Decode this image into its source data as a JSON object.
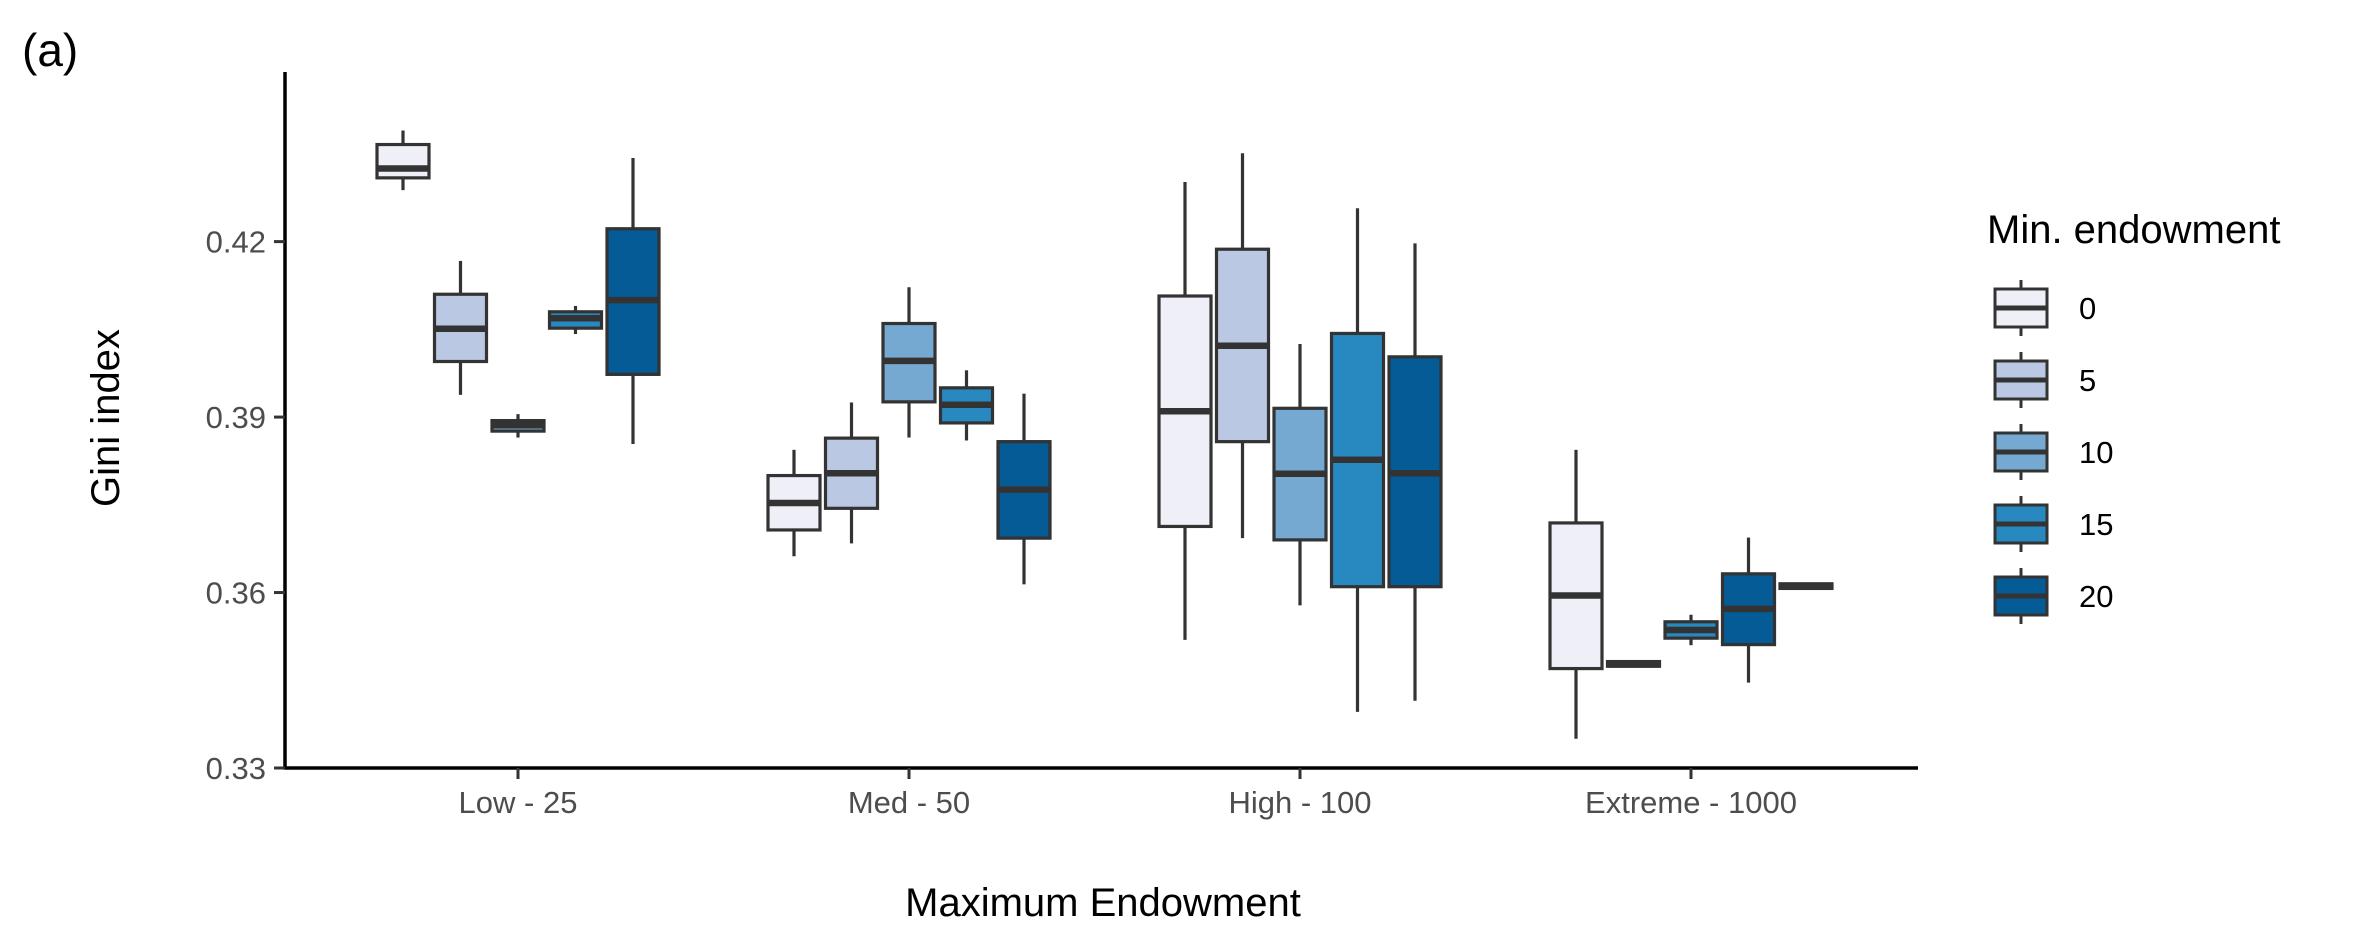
{
  "panel_tag": "(a)",
  "colors": {
    "series": [
      "#eff0f7",
      "#bac8e3",
      "#75a9d2",
      "#2888c0",
      "#045b95"
    ],
    "stroke": "#333333",
    "axis": "#000000"
  },
  "chart_data": {
    "type": "box",
    "xlabel": "Maximum Endowment",
    "ylabel": "Gini index",
    "ylim": [
      0.33,
      0.449
    ],
    "yticks": [
      0.33,
      0.36,
      0.39,
      0.42
    ],
    "ytick_labels": [
      "0.33",
      "0.36",
      "0.39",
      "0.42"
    ],
    "categories": [
      "Low - 25",
      "Med - 50",
      "High - 100",
      "Extreme - 1000"
    ],
    "legend_title": "Min. endowment",
    "legend_position": "right",
    "grid": false,
    "series": [
      {
        "name": "0",
        "boxes": [
          {
            "min": 0.4288,
            "q1": 0.4309,
            "median": 0.4325,
            "q3": 0.4366,
            "max": 0.439
          },
          {
            "min": 0.3662,
            "q1": 0.3707,
            "median": 0.3753,
            "q3": 0.38,
            "max": 0.3844
          },
          {
            "min": 0.3519,
            "q1": 0.3713,
            "median": 0.391,
            "q3": 0.4107,
            "max": 0.4302
          },
          {
            "min": 0.335,
            "q1": 0.347,
            "median": 0.3595,
            "q3": 0.3719,
            "max": 0.3844
          }
        ]
      },
      {
        "name": "5",
        "boxes": [
          {
            "min": 0.3938,
            "q1": 0.3995,
            "median": 0.4051,
            "q3": 0.411,
            "max": 0.4167
          },
          {
            "min": 0.3684,
            "q1": 0.3744,
            "median": 0.3804,
            "q3": 0.3864,
            "max": 0.3925
          },
          {
            "min": 0.3693,
            "q1": 0.3858,
            "median": 0.4022,
            "q3": 0.4187,
            "max": 0.4351
          }
        ]
      },
      {
        "name": "10",
        "boxes": [
          {
            "min": 0.3865,
            "q1": 0.3876,
            "median": 0.3886,
            "q3": 0.3894,
            "max": 0.3905
          },
          {
            "min": 0.3865,
            "q1": 0.3926,
            "median": 0.3996,
            "q3": 0.406,
            "max": 0.4122
          },
          {
            "min": 0.3578,
            "q1": 0.369,
            "median": 0.3803,
            "q3": 0.3915,
            "max": 0.4025
          },
          {
            "min": 0.3472,
            "q1": 0.3474,
            "median": 0.3477,
            "q3": 0.3482,
            "max": 0.3484
          }
        ]
      },
      {
        "name": "15",
        "boxes": [
          {
            "min": 0.4042,
            "q1": 0.4052,
            "median": 0.4069,
            "q3": 0.408,
            "max": 0.409
          },
          {
            "min": 0.386,
            "q1": 0.389,
            "median": 0.3921,
            "q3": 0.395,
            "max": 0.398
          },
          {
            "min": 0.3396,
            "q1": 0.361,
            "median": 0.3827,
            "q3": 0.4043,
            "max": 0.4257
          },
          {
            "min": 0.351,
            "q1": 0.3522,
            "median": 0.3536,
            "q3": 0.355,
            "max": 0.3562
          }
        ]
      },
      {
        "name": "20",
        "boxes": [
          {
            "min": 0.3854,
            "q1": 0.3973,
            "median": 0.41,
            "q3": 0.4222,
            "max": 0.4343
          },
          {
            "min": 0.3614,
            "q1": 0.3693,
            "median": 0.3776,
            "q3": 0.3858,
            "max": 0.394
          },
          {
            "min": 0.3415,
            "q1": 0.361,
            "median": 0.3804,
            "q3": 0.4003,
            "max": 0.4197
          },
          {
            "min": 0.3446,
            "q1": 0.3511,
            "median": 0.3572,
            "q3": 0.3632,
            "max": 0.3694
          },
          {
            "min": 0.3607,
            "q1": 0.3607,
            "median": 0.361,
            "q3": 0.3615,
            "max": 0.3615
          }
        ]
      }
    ],
    "group_slots": [
      [
        0,
        1,
        2,
        3,
        4
      ],
      [
        0,
        1,
        2,
        3,
        4
      ],
      [
        0,
        1,
        2,
        3,
        4
      ],
      [
        0,
        2,
        3,
        4,
        4
      ]
    ]
  }
}
